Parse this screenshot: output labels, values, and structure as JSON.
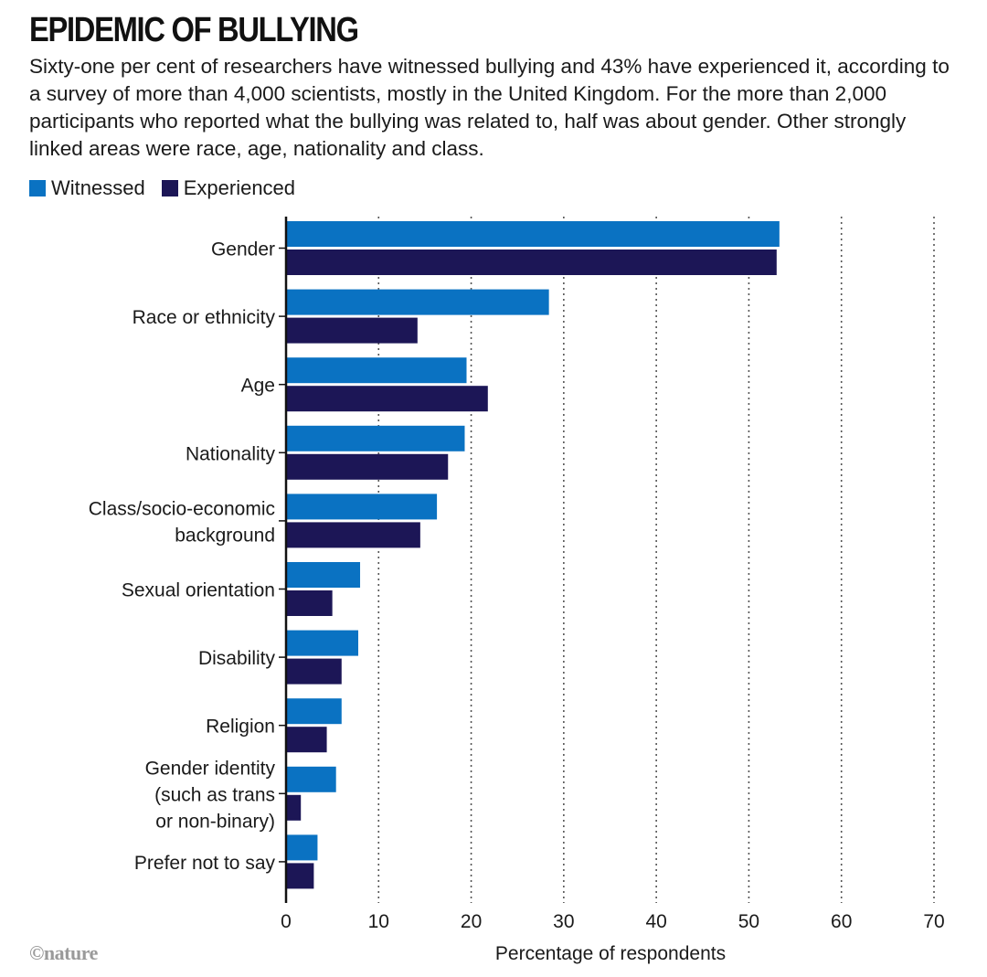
{
  "header": {
    "title": "EPIDEMIC OF BULLYING",
    "subtitle": "Sixty-one per cent of researchers have witnessed bullying and 43% have experienced it, according to a survey of more than 4,000 scientists, mostly in the United Kingdom. For the more than 2,000 participants who reported what the bullying was related to, half was about gender. Other strongly linked areas were race, age, nationality and class."
  },
  "credit": "©nature",
  "colors": {
    "witnessed": "#0a72c2",
    "experienced": "#1c1656",
    "grid": "#555555"
  },
  "chart_data": {
    "type": "bar",
    "orientation": "horizontal",
    "categories": [
      [
        "Gender"
      ],
      [
        "Race or ethnicity"
      ],
      [
        "Age"
      ],
      [
        "Nationality"
      ],
      [
        "Class/socio-economic",
        "background"
      ],
      [
        "Sexual orientation"
      ],
      [
        "Disability"
      ],
      [
        "Religion"
      ],
      [
        "Gender identity",
        "(such as trans",
        "or non-binary)"
      ],
      [
        "Prefer not to say"
      ]
    ],
    "series": [
      {
        "name": "Witnessed",
        "values": [
          53.3,
          28.4,
          19.5,
          19.3,
          16.3,
          8.0,
          7.8,
          6.0,
          5.4,
          3.4
        ]
      },
      {
        "name": "Experienced",
        "values": [
          53.0,
          14.2,
          21.8,
          17.5,
          14.5,
          5.0,
          6.0,
          4.4,
          1.6,
          3.0
        ]
      }
    ],
    "xlabel": "Percentage of respondents",
    "xlim": [
      0,
      70
    ],
    "xticks": [
      0,
      10,
      20,
      30,
      40,
      50,
      60,
      70
    ],
    "grid": "vertical-dotted",
    "legend": "top-left"
  }
}
